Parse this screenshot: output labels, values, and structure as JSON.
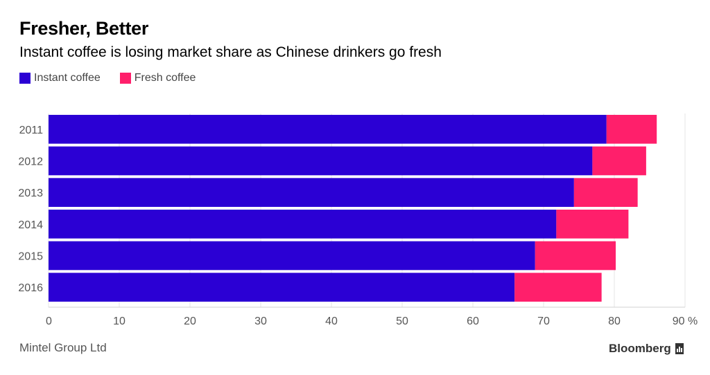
{
  "header": {
    "title": "Fresher, Better",
    "subtitle": "Instant coffee is losing market share as Chinese drinkers go fresh"
  },
  "footer": {
    "source": "Mintel Group Ltd",
    "brand": "Bloomberg",
    "brand_icon": "bar-chart-icon"
  },
  "colors": {
    "instant": "#2B00D4",
    "fresh": "#FF1F6B",
    "grid": "#e4e4e4",
    "tick_text": "#555555"
  },
  "chart_data": {
    "type": "bar",
    "orientation": "horizontal",
    "stacked": true,
    "title": "Fresher, Better",
    "subtitle": "Instant coffee is losing market share as Chinese drinkers go fresh",
    "categories": [
      "2011",
      "2012",
      "2013",
      "2014",
      "2015",
      "2016"
    ],
    "series": [
      {
        "name": "Instant coffee",
        "values": [
          78.9,
          76.9,
          74.3,
          71.8,
          68.8,
          65.9
        ]
      },
      {
        "name": "Fresh coffee",
        "values": [
          7.1,
          7.6,
          9.0,
          10.2,
          11.4,
          12.3
        ]
      }
    ],
    "xlim": [
      0,
      90
    ],
    "xticks": [
      "0",
      "10",
      "20",
      "30",
      "40",
      "50",
      "60",
      "70",
      "80",
      "90 %"
    ],
    "legend_position": "top-left",
    "grid": true
  }
}
